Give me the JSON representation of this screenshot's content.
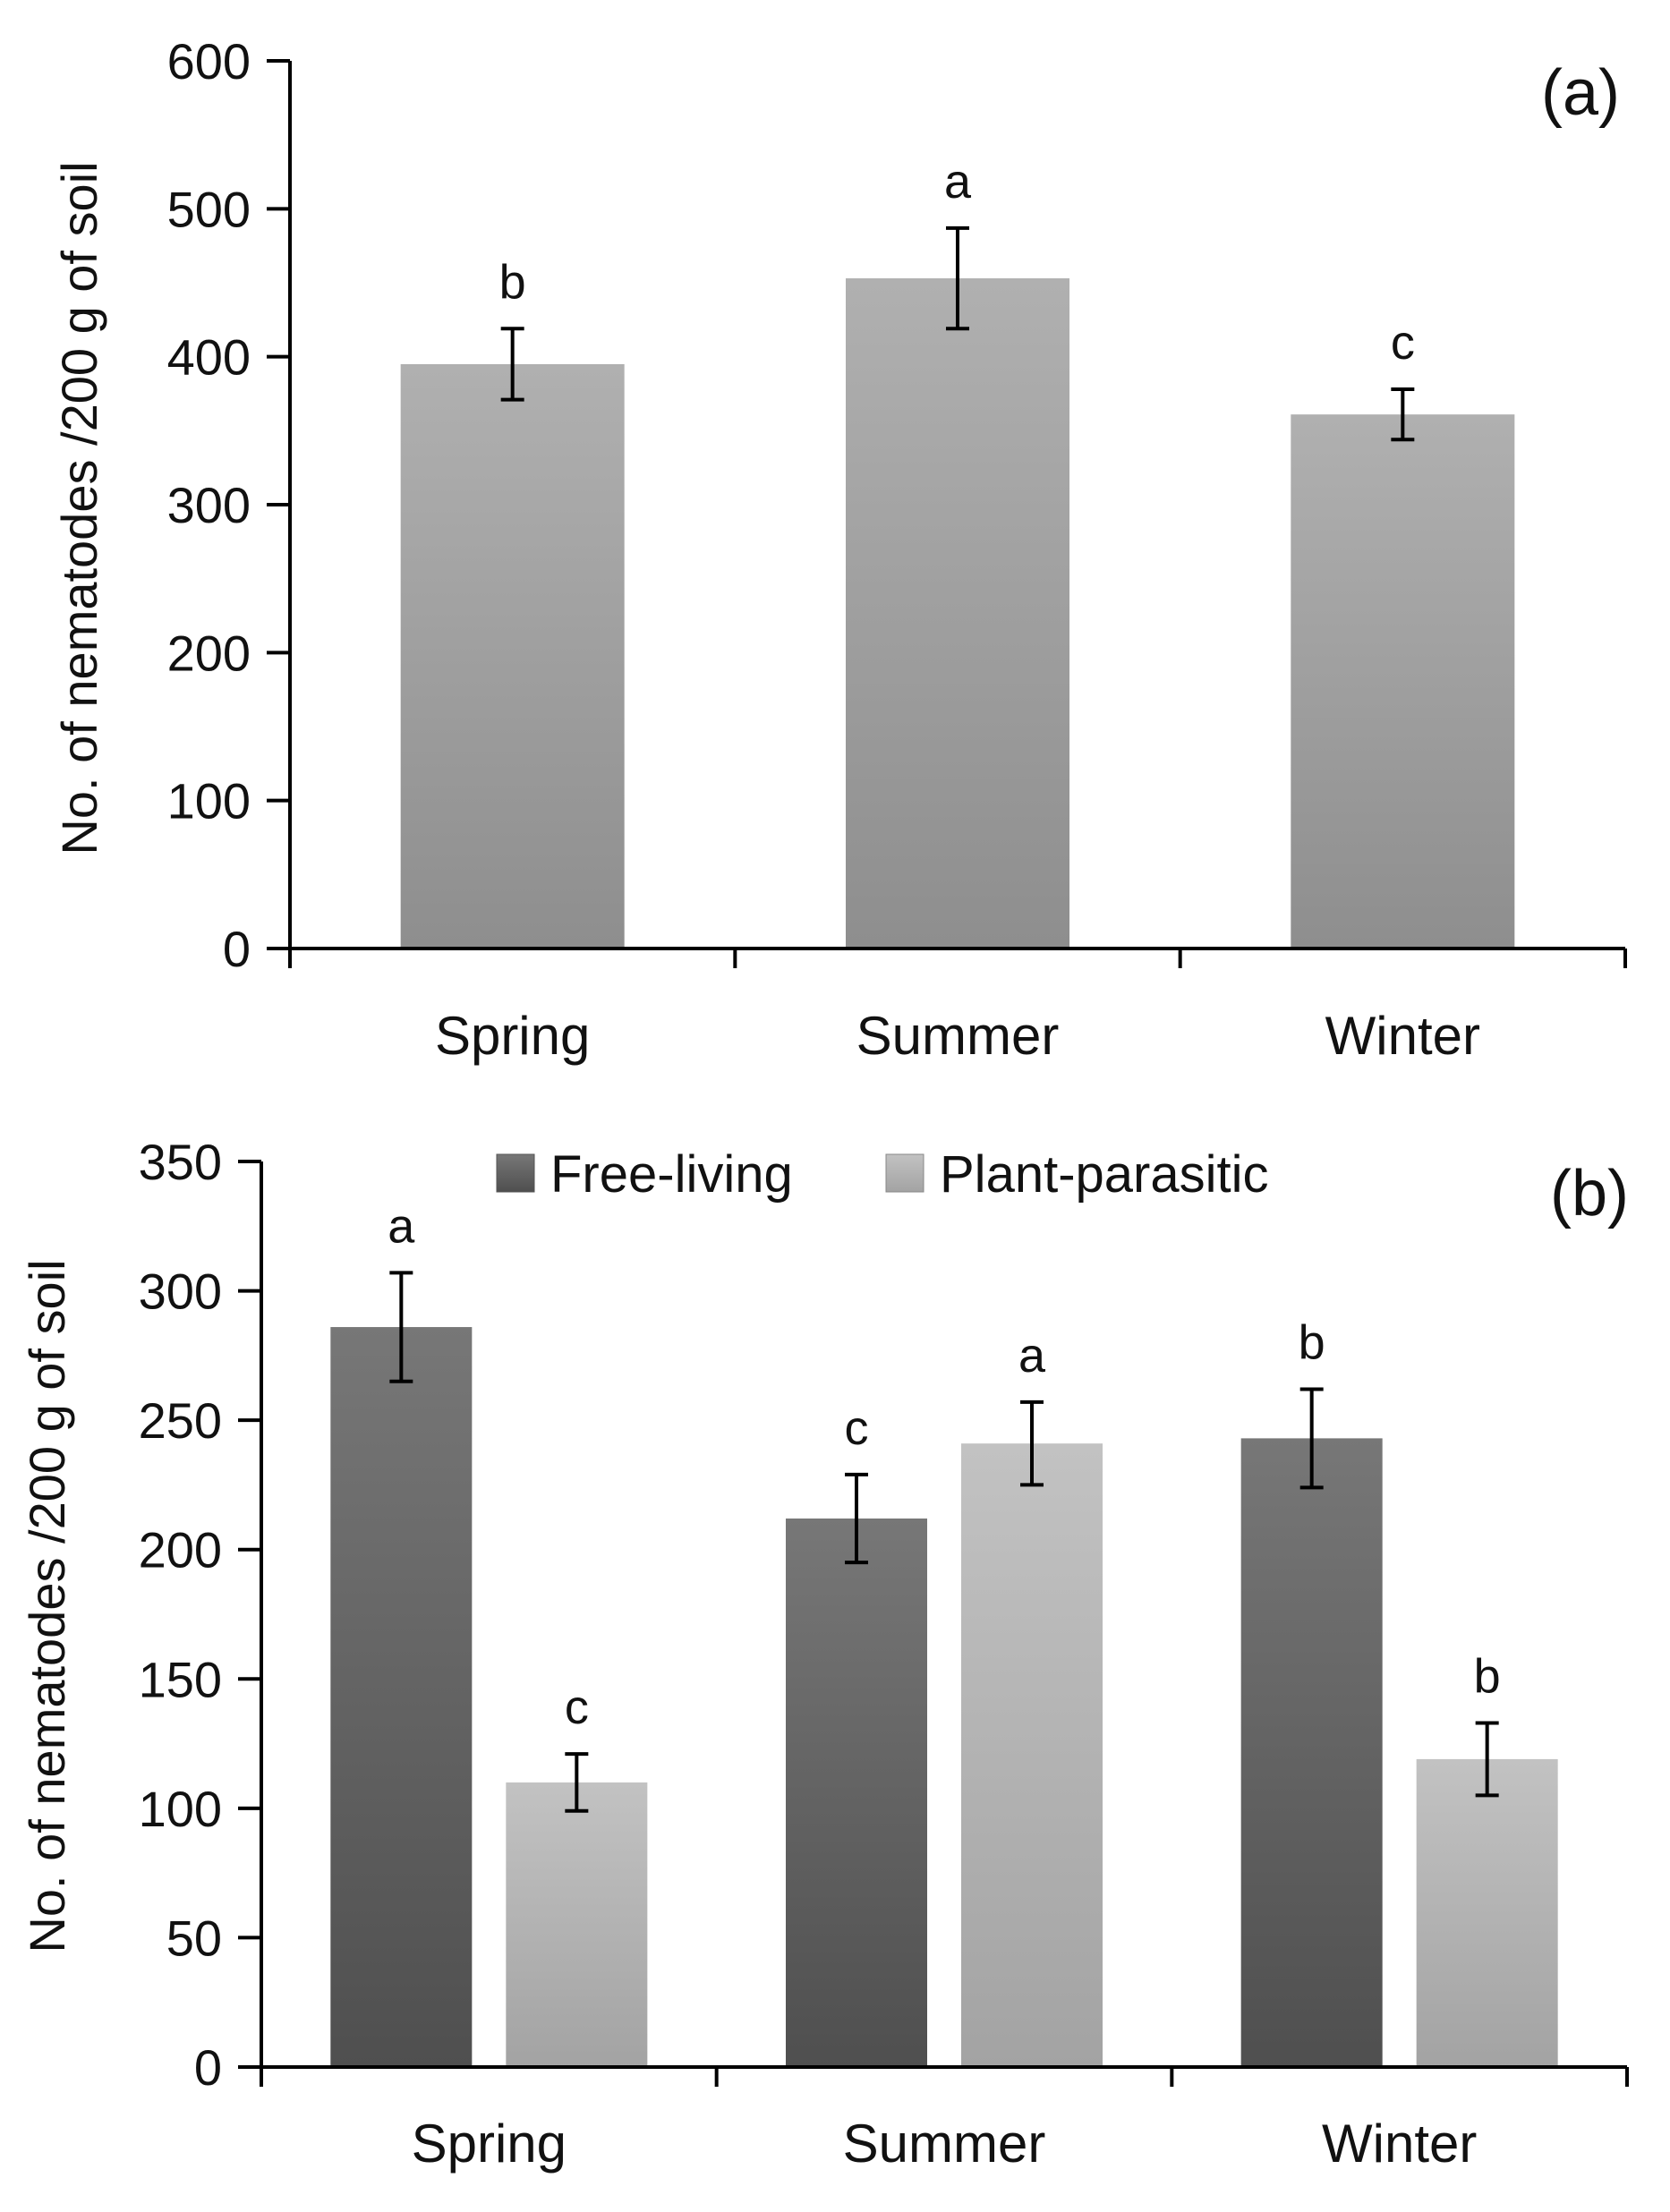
{
  "colors": {
    "axis": "#000000",
    "panel_a_top": "#b0b0b0",
    "panel_a_bottom": "#8e8e8e",
    "free_living_top": "#777777",
    "free_living_bottom": "#4f4f4f",
    "plant_parasitic_top": "#c2c2c2",
    "plant_parasitic_bottom": "#a3a3a3"
  },
  "chart_data": [
    {
      "panel": "(a)",
      "type": "bar",
      "ylabel": "No. of nematodes /200 g of soil",
      "xlabel": "",
      "ylim": [
        0,
        600
      ],
      "yticks": [
        0,
        100,
        200,
        300,
        400,
        500,
        600
      ],
      "categories": [
        "Spring",
        "Summer",
        "Winter"
      ],
      "series": [
        {
          "name": "",
          "values": [
            395,
            453,
            361
          ],
          "errors": [
            24,
            34,
            17
          ],
          "letters": [
            "b",
            "a",
            "c"
          ]
        }
      ]
    },
    {
      "panel": "(b)",
      "type": "bar",
      "ylabel": "No. of nematodes /200 g of soil",
      "xlabel": "",
      "ylim": [
        0,
        350
      ],
      "yticks": [
        0,
        50,
        100,
        150,
        200,
        250,
        300,
        350
      ],
      "categories": [
        "Spring",
        "Summer",
        "Winter"
      ],
      "legend_position": "top",
      "series": [
        {
          "name": "Free-living",
          "values": [
            286,
            212,
            243
          ],
          "errors": [
            21,
            17,
            19
          ],
          "letters": [
            "a",
            "c",
            "b"
          ]
        },
        {
          "name": "Plant-parasitic",
          "values": [
            110,
            241,
            119
          ],
          "errors": [
            11,
            16,
            14
          ],
          "letters": [
            "c",
            "a",
            "b"
          ]
        }
      ]
    }
  ]
}
